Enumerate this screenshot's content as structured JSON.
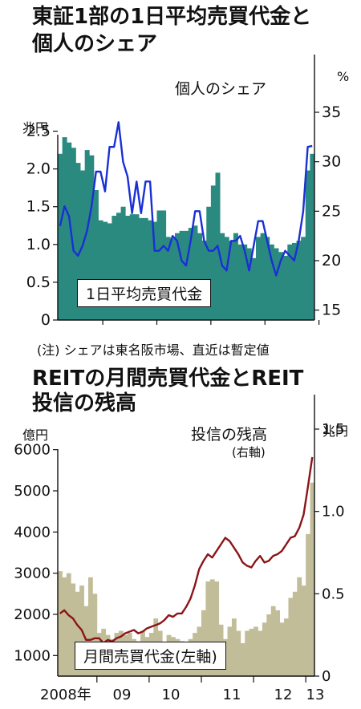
{
  "chart1": {
    "title_line1": "東証1部の1日平均売買代金と",
    "title_line2": "個人のシェア",
    "left_unit": "兆円",
    "right_unit": "%",
    "left_ticks": [
      "2.5",
      "2.0",
      "1.5",
      "1.0",
      "0.5",
      "0"
    ],
    "right_ticks": [
      "35",
      "30",
      "25",
      "20",
      "15"
    ],
    "bar_label": "1日平均売買代金",
    "line_label": "個人のシェア",
    "note": "(注) シェアは東名阪市場、直近は暫定値"
  },
  "chart2": {
    "title_line1": "REITの月間売買代金とREIT",
    "title_line2": "投信の残高",
    "left_unit": "億円",
    "right_unit": "兆円",
    "left_ticks": [
      "6000",
      "5000",
      "4000",
      "3000",
      "2000",
      "1000"
    ],
    "right_ticks": [
      "1.5",
      "1.0",
      "0.5",
      "0"
    ],
    "bar_label": "月間売買代金(左軸)",
    "line_label": "投信の残高",
    "line_sub": "(右軸)",
    "x_ticks": [
      "2008年",
      "09",
      "10",
      "11",
      "12",
      "13"
    ]
  },
  "chart_data": [
    {
      "type": "bar",
      "title": "東証1部の1日平均売買代金と個人のシェア",
      "left_axis": {
        "unit": "兆円",
        "range": [
          0,
          2.75
        ]
      },
      "right_axis": {
        "unit": "%",
        "range": [
          14,
          35
        ]
      },
      "series": [
        {
          "name": "1日平均売買代金",
          "kind": "bar",
          "axis": "left",
          "values": [
            2.2,
            2.42,
            2.35,
            2.28,
            2.08,
            1.98,
            2.25,
            2.18,
            1.72,
            1.32,
            1.3,
            1.28,
            1.38,
            1.42,
            1.5,
            1.38,
            1.4,
            1.4,
            1.35,
            1.35,
            1.32,
            1.3,
            1.45,
            1.45,
            1.1,
            1.08,
            1.15,
            1.18,
            1.18,
            1.22,
            1.25,
            1.15,
            1.05,
            1.5,
            1.78,
            1.95,
            1.15,
            1.1,
            1.05,
            1.15,
            1.0,
            1.0,
            0.95,
            0.82,
            1.1,
            1.15,
            1.1,
            1.0,
            0.95,
            0.9,
            0.85,
            1.0,
            1.02,
            1.05,
            1.1,
            1.98,
            2.2
          ]
        },
        {
          "name": "個人のシェア",
          "kind": "line",
          "axis": "right",
          "values": [
            23.5,
            25.5,
            24.5,
            21,
            20.5,
            21.5,
            23,
            25.5,
            29,
            29,
            27,
            31.5,
            31.5,
            34,
            30,
            28.5,
            24.8,
            28,
            24.8,
            28,
            28,
            21,
            21,
            21.5,
            21,
            22.5,
            22,
            20,
            19.5,
            22,
            25,
            25,
            22,
            21,
            21,
            21.5,
            19.5,
            19,
            22,
            22,
            22.5,
            21,
            19,
            21.5,
            24,
            24,
            22,
            20,
            18.5,
            20,
            21,
            20.5,
            20,
            22,
            25,
            31.5,
            31.6
          ]
        }
      ]
    },
    {
      "type": "bar",
      "title": "REITの月間売買代金とREIT投信の残高",
      "x_labels": [
        "2008年",
        "09",
        "10",
        "11",
        "12",
        "13"
      ],
      "left_axis": {
        "unit": "億円",
        "range": [
          500,
          6500
        ]
      },
      "right_axis": {
        "unit": "兆円",
        "range": [
          0,
          1.5
        ]
      },
      "series": [
        {
          "name": "月間売買代金(左軸)",
          "kind": "bar",
          "axis": "left",
          "values": [
            3050,
            2900,
            3000,
            2750,
            2550,
            2700,
            2200,
            2900,
            2500,
            1550,
            1650,
            1500,
            1400,
            1550,
            1600,
            1500,
            1550,
            1400,
            1350,
            1600,
            1450,
            1550,
            1900,
            1600,
            1300,
            1500,
            1450,
            1400,
            1350,
            1250,
            1400,
            1550,
            1700,
            2100,
            2800,
            2850,
            2800,
            1750,
            1400,
            1700,
            1900,
            1600,
            1300,
            1600,
            1650,
            1700,
            1600,
            1800,
            2000,
            2200,
            2100,
            1800,
            1900,
            2400,
            2550,
            2900,
            2700,
            3950,
            5200
          ]
        },
        {
          "name": "投信の残高",
          "kind": "line",
          "axis": "right",
          "values": [
            0.38,
            0.4,
            0.37,
            0.35,
            0.31,
            0.28,
            0.22,
            0.22,
            0.23,
            0.23,
            0.2,
            0.22,
            0.21,
            0.23,
            0.24,
            0.26,
            0.27,
            0.28,
            0.26,
            0.27,
            0.29,
            0.3,
            0.31,
            0.32,
            0.34,
            0.37,
            0.36,
            0.38,
            0.38,
            0.42,
            0.47,
            0.55,
            0.65,
            0.7,
            0.74,
            0.72,
            0.76,
            0.8,
            0.84,
            0.82,
            0.78,
            0.74,
            0.69,
            0.67,
            0.66,
            0.7,
            0.73,
            0.69,
            0.7,
            0.73,
            0.74,
            0.76,
            0.8,
            0.84,
            0.85,
            0.9,
            0.98,
            1.15,
            1.33
          ]
        }
      ]
    }
  ],
  "colors": {
    "teal": "#2a8a80",
    "khaki": "#c2bd99",
    "line_blue": "#1a2fd6",
    "line_red": "#8b1418"
  }
}
